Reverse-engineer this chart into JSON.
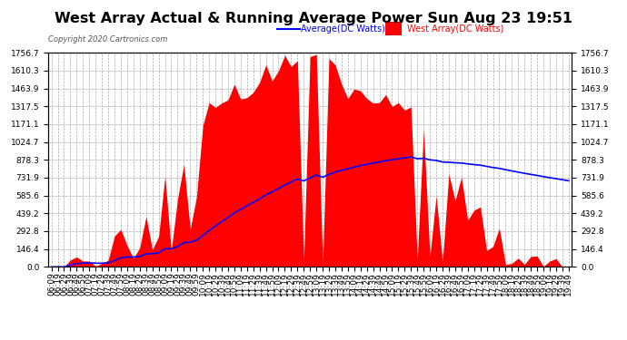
{
  "title": "West Array Actual & Running Average Power Sun Aug 23 19:51",
  "copyright": "Copyright 2020 Cartronics.com",
  "legend_avg": "Average(DC Watts)",
  "legend_west": "West Array(DC Watts)",
  "ymax": 1756.7,
  "yticks": [
    0.0,
    146.4,
    292.8,
    439.2,
    585.6,
    731.9,
    878.3,
    1024.7,
    1171.1,
    1317.5,
    1463.9,
    1610.3,
    1756.7
  ],
  "bg_color": "#ffffff",
  "grid_color": "#aaaaaa",
  "bar_color": "#ff0000",
  "avg_line_color": "#0000ff",
  "title_color": "#000000",
  "copyright_color": "#555555",
  "legend_avg_color": "#0000ff",
  "legend_west_color": "#ff0000",
  "tick_fontsize": 6.5,
  "title_fontsize": 11.5
}
